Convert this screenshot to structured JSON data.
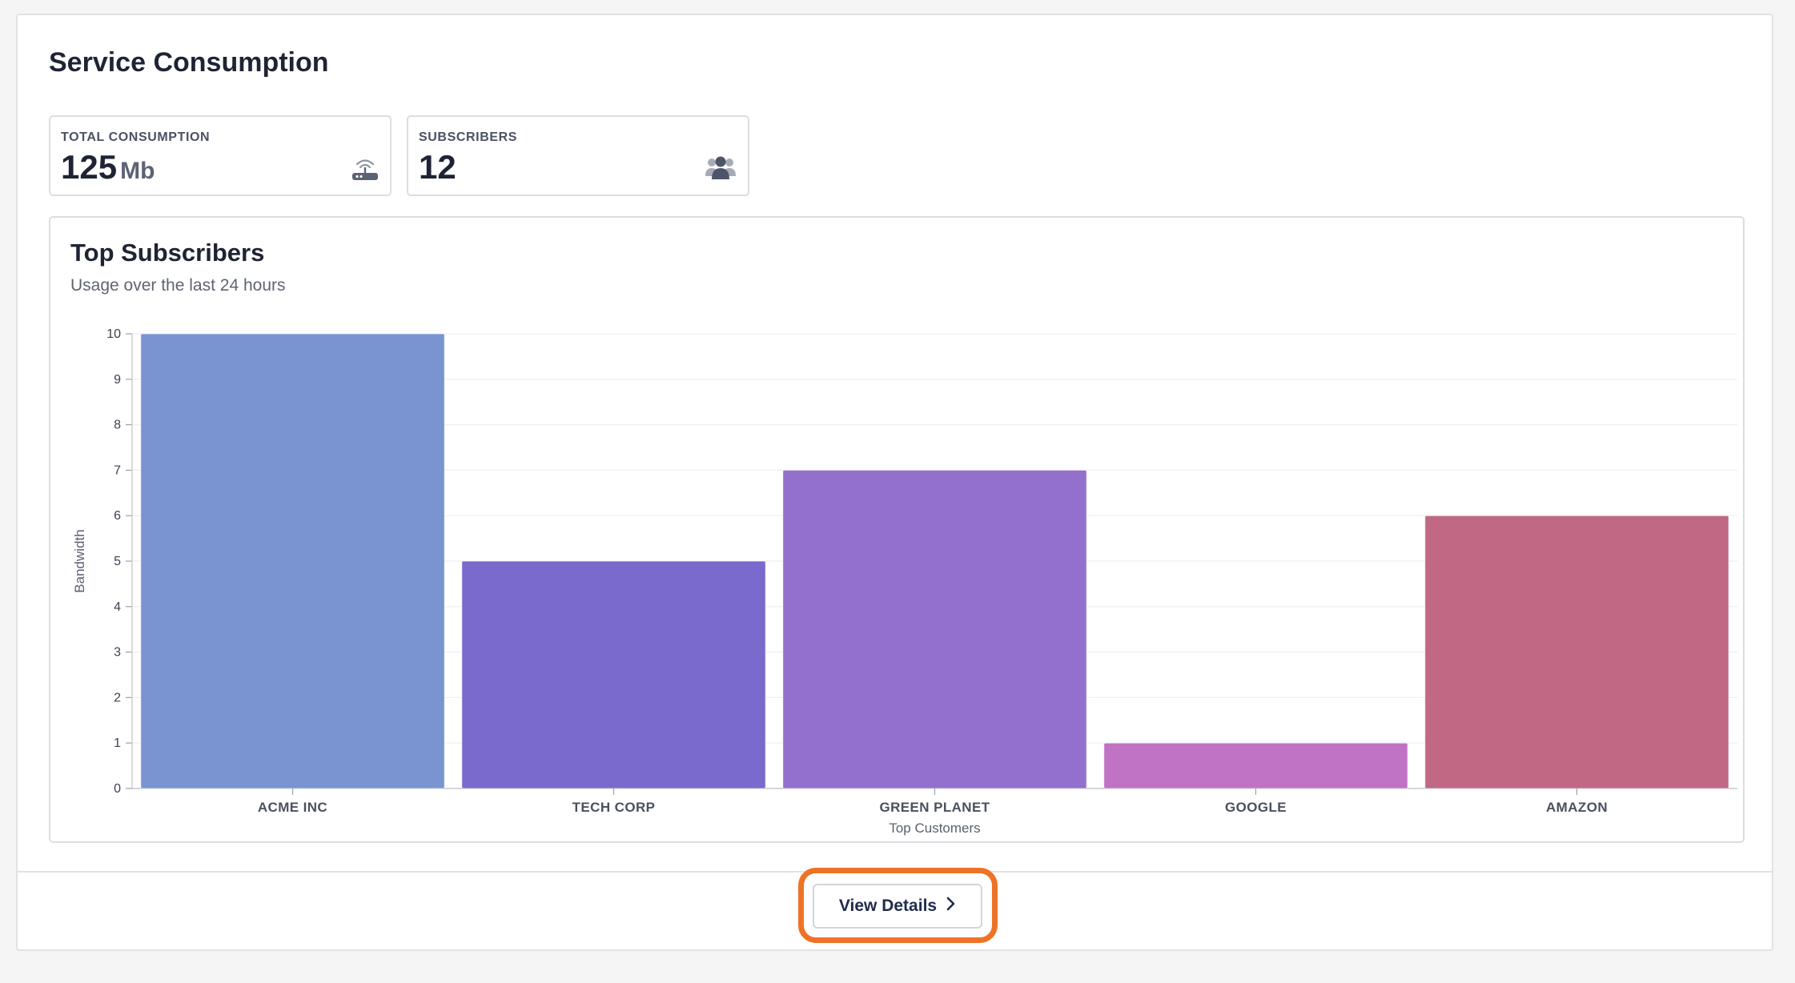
{
  "card": {
    "title": "Service Consumption"
  },
  "stats": {
    "consumption": {
      "label": "TOTAL CONSUMPTION",
      "value": "125",
      "unit": "Mb",
      "icon": "router-icon"
    },
    "subscribers": {
      "label": "SUBSCRIBERS",
      "value": "12",
      "icon": "users-icon"
    }
  },
  "chart": {
    "title": "Top Subscribers",
    "subtitle": "Usage over the last 24 hours"
  },
  "chart_data": {
    "type": "bar",
    "title": "Top Subscribers",
    "subtitle": "Usage over the last 24 hours",
    "categories": [
      "ACME INC",
      "TECH CORP",
      "GREEN PLANET",
      "GOOGLE",
      "AMAZON"
    ],
    "values": [
      10,
      5,
      7,
      1,
      6
    ],
    "colors": [
      "#7a93d1",
      "#7a6acd",
      "#9370cc",
      "#c072c4",
      "#c06884"
    ],
    "xlabel": "Top Customers",
    "ylabel": "Bandwidth",
    "ylim": [
      0,
      10
    ],
    "yticks": [
      0,
      1,
      2,
      3,
      4,
      5,
      6,
      7,
      8,
      9,
      10
    ],
    "grid": true,
    "legend": "none"
  },
  "footer": {
    "button_label": "View Details",
    "highlight_color": "#ee7326"
  }
}
